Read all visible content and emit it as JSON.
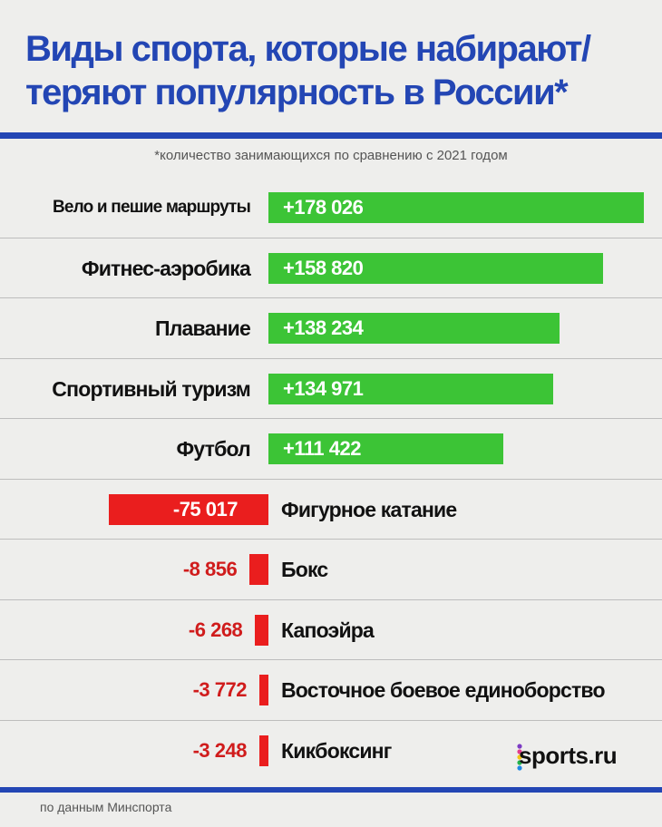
{
  "header": {
    "title_line1": "Виды спорта, которые набирают/",
    "title_line2": "теряют популярность в России*",
    "subtitle": "*количество занимающихся по сравнению с 2021 годом"
  },
  "footer": {
    "source": "по данным Минспорта",
    "logo_text": "sports.ru",
    "logo_dot_colors": [
      "#7c3cc4",
      "#e03a8c",
      "#f4c514",
      "#24b24b",
      "#1e88e5"
    ]
  },
  "colors": {
    "gain": "#3cc436",
    "loss": "#ea1e1e",
    "title": "#2346b4",
    "loss_label": "#d01c1c"
  },
  "chart_data": {
    "type": "bar",
    "orientation": "horizontal",
    "diverging": true,
    "categories": [
      "Вело и пешие маршруты",
      "Фитнес-аэробика",
      "Плавание",
      "Спортивный туризм",
      "Футбол",
      "Фигурное катание",
      "Бокс",
      "Капоэйра",
      "Восточное боевое единоборство",
      "Кикбоксинг"
    ],
    "values": [
      178026,
      158820,
      138234,
      134971,
      111422,
      -75017,
      -8856,
      -6268,
      -3772,
      -3248
    ],
    "labels": [
      "+178 026",
      "+158 820",
      "+138 234",
      "+134 971",
      "+111 422",
      "-75 017",
      "-8 856",
      "-6 268",
      "-3 772",
      "-3 248"
    ],
    "grid": true,
    "legend": "none"
  }
}
